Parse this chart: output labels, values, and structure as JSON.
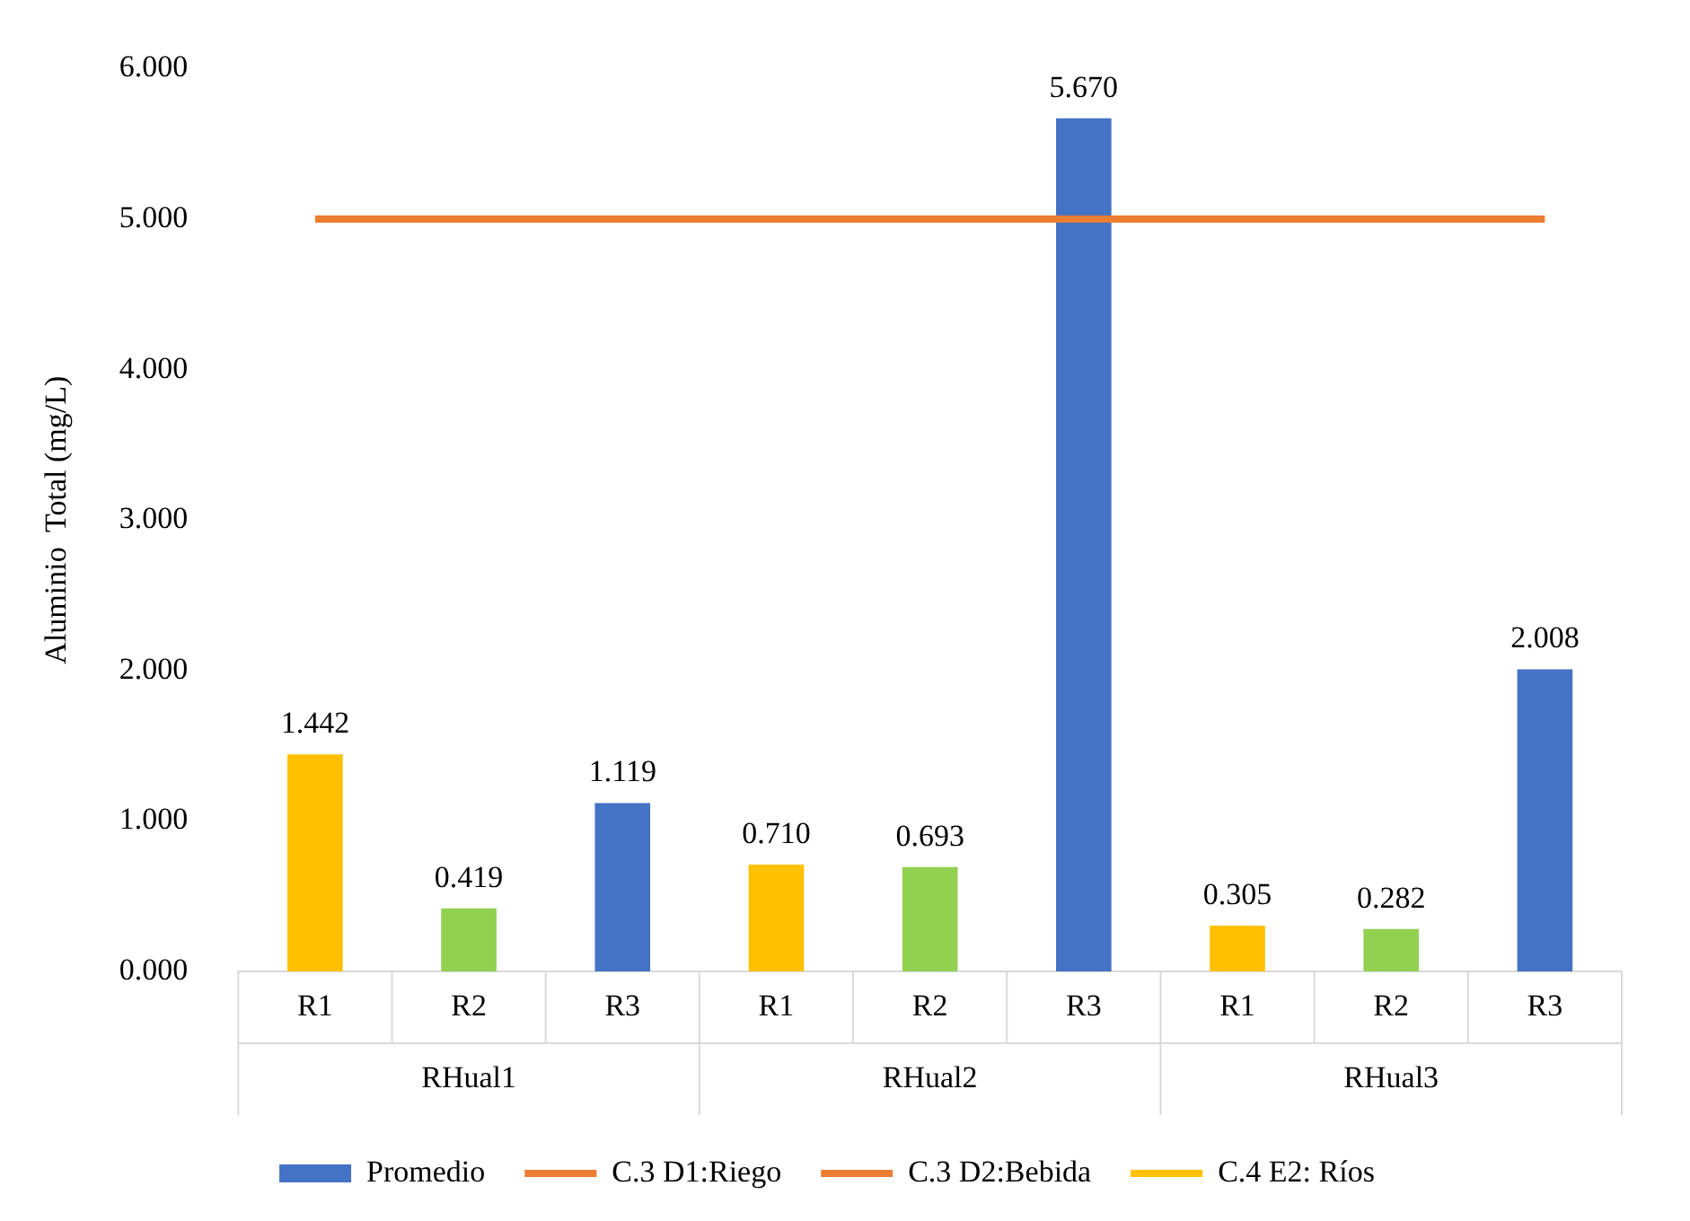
{
  "chart_data": {
    "type": "bar",
    "ylabel": "Aluminio  Total (mg/L)",
    "categories": [
      "R1",
      "R2",
      "R3",
      "R1",
      "R2",
      "R3",
      "R1",
      "R2",
      "R3"
    ],
    "annotations": [
      "RHual1",
      "RHual2",
      "RHual3"
    ],
    "series": [
      {
        "name": "Promedio",
        "color": "#4472c4",
        "colors": [
          "#ffc000",
          "#92d050",
          "#4472c4",
          "#ffc000",
          "#92d050",
          "#4472c4",
          "#ffc000",
          "#92d050",
          "#4472c4"
        ],
        "values": [
          1.442,
          0.419,
          1.119,
          0.71,
          0.693,
          5.67,
          0.305,
          0.282,
          2.008
        ],
        "value_labels": [
          "1.442",
          "0.419",
          "1.119",
          "0.710",
          "0.693",
          "5.670",
          "0.305",
          "0.282",
          "2.008"
        ]
      },
      {
        "name": "C.3 D1:Riego",
        "type": "line",
        "color": "#ed7d31",
        "values": [
          5,
          5,
          5,
          5,
          5,
          5,
          5,
          5,
          5
        ]
      },
      {
        "name": "C.3 D2:Bebida",
        "type": "line",
        "color": "#ed7d31",
        "values": [
          null,
          null,
          null,
          null,
          null,
          null,
          null,
          null,
          null
        ]
      },
      {
        "name": "C.4 E2: Ríos",
        "type": "line",
        "color": "#ffc000",
        "values": [
          null,
          null,
          null,
          null,
          null,
          null,
          null,
          null,
          null
        ]
      }
    ],
    "ylim": [
      0,
      6
    ],
    "yticks": [
      {
        "value": 0,
        "label": "0.000"
      },
      {
        "value": 1,
        "label": "1.000"
      },
      {
        "value": 2,
        "label": "2.000"
      },
      {
        "value": 3,
        "label": "3.000"
      },
      {
        "value": 4,
        "label": "4.000"
      },
      {
        "value": 5,
        "label": "5.000"
      },
      {
        "value": 6,
        "label": "6.000"
      }
    ],
    "grid": false,
    "legend": "bottom"
  }
}
